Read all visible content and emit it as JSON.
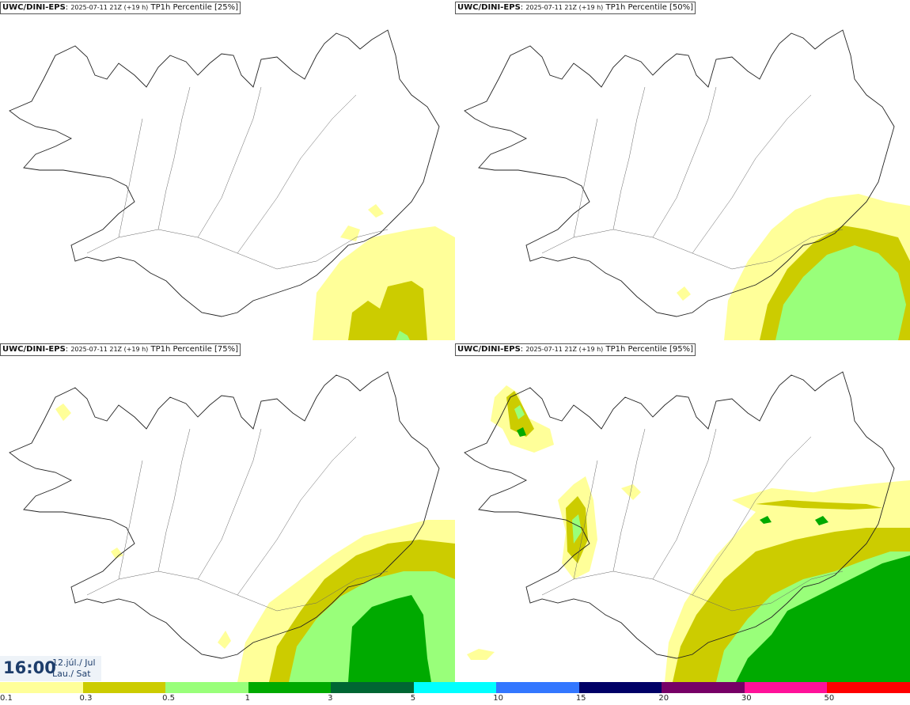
{
  "panels": [
    {
      "model": "UWC/DINI-EPS",
      "run": "2025-07-11 21Z (+19 h)",
      "field": "TP1h Percentile [25%]"
    },
    {
      "model": "UWC/DINI-EPS",
      "run": "2025-07-11 21Z (+19 h)",
      "field": "TP1h Percentile [50%]"
    },
    {
      "model": "UWC/DINI-EPS",
      "run": "2025-07-11 21Z (+19 h)",
      "field": "TP1h Percentile [75%]"
    },
    {
      "model": "UWC/DINI-EPS",
      "run": "2025-07-11 21Z (+19 h)",
      "field": "TP1h Percentile [95%]"
    }
  ],
  "valid_time": {
    "time": "16:00",
    "date": "12.júl./ Jul",
    "day": "Lau./ Sat"
  },
  "legend": {
    "ticks": [
      "0.1",
      "0.3",
      "0.5",
      "1",
      "3",
      "5",
      "10",
      "15",
      "20",
      "30",
      "50"
    ],
    "colors": [
      "#ffff99",
      "#cccc00",
      "#99ff7a",
      "#00aa00",
      "#006633",
      "#00ffff",
      "#3377ff",
      "#000066",
      "#770066",
      "#ff1199",
      "#ff0000"
    ]
  }
}
